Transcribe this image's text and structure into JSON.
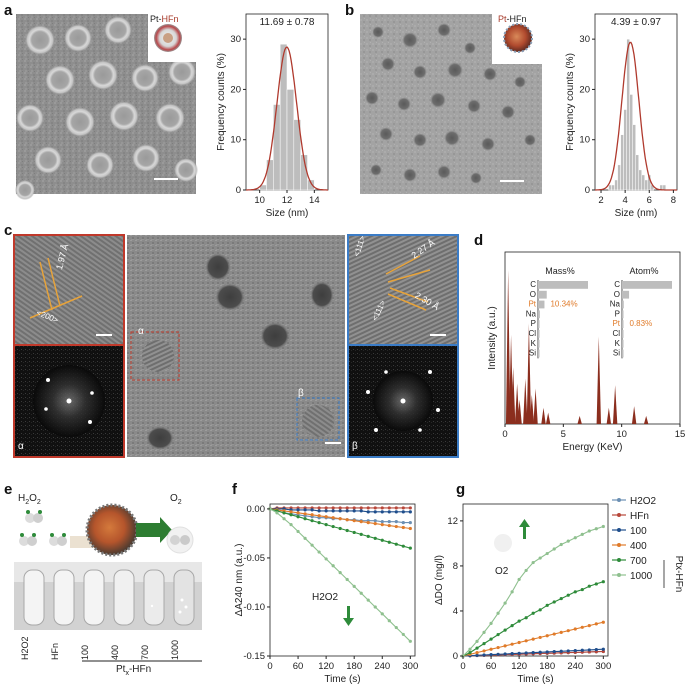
{
  "panels": {
    "a": {
      "letter": "a",
      "model_label_prefix": "Pt-",
      "model_label_suffix": "HFn",
      "stat": "11.69 ± 0.78",
      "xlabel": "Size (nm)",
      "ylabel": "Frequency counts (%)"
    },
    "b": {
      "letter": "b",
      "model_label_prefix": "Pt",
      "model_label_suffix": "-HFn",
      "stat": "4.39 ± 0.97",
      "xlabel": "Size (nm)",
      "ylabel": "Frequency counts (%)"
    },
    "c": {
      "letter": "c",
      "d1": "1.97 Å",
      "plane1": "<200>",
      "alpha": "α",
      "beta": "β",
      "d2": "2.27 Å",
      "d3": "2.30 Å",
      "plane2": "<111>",
      "plane3": "<111>"
    },
    "d": {
      "letter": "d",
      "xlabel": "Energy (KeV)",
      "ylabel": "Intensity (a.u.)",
      "mass_title": "Mass%",
      "atom_title": "Atom%",
      "pt_mass": "10.34%",
      "pt_atom": "0.83%"
    },
    "e": {
      "letter": "e",
      "h2o2": "H2O2",
      "o2": "O2",
      "tube_labels": [
        "H2O2",
        "HFn",
        "100",
        "400",
        "700",
        "1000"
      ],
      "group_label": "Ptx-HFn"
    },
    "f": {
      "letter": "f",
      "xlabel": "Time (s)",
      "ylabel": "ΔA240 nm (a.u.)",
      "annot": "H2O2"
    },
    "g": {
      "letter": "g",
      "xlabel": "Time (s)",
      "ylabel": "ΔDO (mg/l)",
      "annot": "O2",
      "legend_group": "Ptx-HFn"
    }
  },
  "colors": {
    "pt_orange": "#e07b2a",
    "hfn_red": "#a83a2a",
    "legend_h2o2": "#6b8fb3",
    "legend_hfn": "#b8473a",
    "legend_100": "#1f4e8c",
    "legend_400": "#e07b2a",
    "legend_700": "#2e8b3a",
    "legend_1000": "#8fc08f",
    "bar_gray": "#bdbdbd",
    "eds_red": "#8b2e1e"
  },
  "chart_data": [
    {
      "type": "bar",
      "id": "a-hist",
      "title": "",
      "xlabel": "Size (nm)",
      "ylabel": "Frequency counts (%)",
      "xlim": [
        9,
        15
      ],
      "ylim": [
        0,
        35
      ],
      "x": [
        10.25,
        10.75,
        11.25,
        11.75,
        12.25,
        12.75,
        13.25,
        13.75
      ],
      "values": [
        1,
        6,
        17,
        29,
        20,
        14,
        7,
        2
      ],
      "xticks": [
        10,
        12,
        14
      ],
      "yticks": [
        0,
        10,
        20,
        30
      ],
      "fit": "gaussian"
    },
    {
      "type": "bar",
      "id": "b-hist",
      "title": "",
      "xlabel": "Size (nm)",
      "ylabel": "Frequency counts (%)",
      "xlim": [
        1.5,
        8.3
      ],
      "ylim": [
        0,
        35
      ],
      "x": [
        2.75,
        3.0,
        3.25,
        3.5,
        3.75,
        4.0,
        4.25,
        4.5,
        4.75,
        5.0,
        5.25,
        5.5,
        5.75,
        6.0,
        6.25,
        6.5,
        6.75,
        7.0,
        7.25
      ],
      "values": [
        1,
        1,
        2,
        5,
        11,
        16,
        30,
        19,
        13,
        7,
        4,
        3,
        2,
        3,
        1,
        0,
        0,
        1,
        1
      ],
      "xticks": [
        2,
        4,
        6,
        8
      ],
      "yticks": [
        0,
        10,
        20,
        30
      ],
      "fit": "gaussian"
    },
    {
      "type": "bar",
      "id": "d-eds",
      "title": "",
      "xlabel": "Energy (KeV)",
      "ylabel": "Intensity (a.u.)",
      "xlim": [
        0,
        15
      ],
      "xticks": [
        0,
        5,
        10,
        15
      ],
      "inset_mass": {
        "categories": [
          "C",
          "O",
          "Pt",
          "Na",
          "P",
          "Cl",
          "K",
          "Si"
        ],
        "values": [
          80,
          14,
          10.34,
          3,
          2,
          1,
          0.5,
          0.3
        ]
      },
      "inset_atom": {
        "categories": [
          "C",
          "O",
          "Na",
          "P",
          "Pt",
          "Cl",
          "K",
          "Si"
        ],
        "values": [
          85,
          12,
          3,
          1.5,
          0.83,
          0.8,
          0.5,
          0.3
        ]
      }
    },
    {
      "type": "line",
      "id": "f-abs",
      "title": "",
      "xlabel": "Time (s)",
      "ylabel": "ΔA240 nm (a.u.)",
      "xlim": [
        0,
        310
      ],
      "ylim": [
        -0.15,
        0.005
      ],
      "xticks": [
        0,
        60,
        120,
        180,
        240,
        300
      ],
      "yticks": [
        0,
        -0.05,
        -0.1,
        -0.15
      ],
      "x": [
        0,
        15,
        30,
        45,
        60,
        75,
        90,
        105,
        120,
        135,
        150,
        165,
        180,
        195,
        210,
        225,
        240,
        255,
        270,
        285,
        300
      ],
      "series": [
        {
          "name": "H2O2",
          "values": [
            0,
            -0.002,
            -0.004,
            -0.005,
            -0.006,
            -0.007,
            -0.008,
            -0.009,
            -0.009,
            -0.01,
            -0.01,
            -0.011,
            -0.011,
            -0.012,
            -0.012,
            -0.012,
            -0.013,
            -0.013,
            -0.013,
            -0.014,
            -0.014
          ]
        },
        {
          "name": "HFn",
          "values": [
            0,
            0.001,
            0.001,
            0.001,
            0.001,
            0.001,
            0.001,
            0.001,
            0.001,
            0.001,
            0.001,
            0.001,
            0.001,
            0.001,
            0.001,
            0.001,
            0.001,
            0.001,
            0.001,
            0.001,
            0.001
          ]
        },
        {
          "name": "100",
          "values": [
            0,
            0,
            0,
            -0.001,
            -0.001,
            -0.001,
            -0.001,
            -0.002,
            -0.002,
            -0.002,
            -0.002,
            -0.002,
            -0.002,
            -0.002,
            -0.003,
            -0.003,
            -0.003,
            -0.003,
            -0.003,
            -0.003,
            -0.003
          ]
        },
        {
          "name": "400",
          "values": [
            0,
            -0.001,
            -0.002,
            -0.003,
            -0.004,
            -0.005,
            -0.006,
            -0.007,
            -0.008,
            -0.009,
            -0.01,
            -0.011,
            -0.012,
            -0.013,
            -0.014,
            -0.015,
            -0.016,
            -0.017,
            -0.018,
            -0.019,
            -0.02
          ]
        },
        {
          "name": "700",
          "values": [
            0,
            -0.002,
            -0.004,
            -0.006,
            -0.008,
            -0.01,
            -0.012,
            -0.014,
            -0.016,
            -0.018,
            -0.02,
            -0.022,
            -0.024,
            -0.026,
            -0.028,
            -0.03,
            -0.032,
            -0.034,
            -0.036,
            -0.038,
            -0.04
          ]
        },
        {
          "name": "1000",
          "values": [
            0,
            -0.004,
            -0.01,
            -0.016,
            -0.023,
            -0.03,
            -0.037,
            -0.044,
            -0.051,
            -0.058,
            -0.065,
            -0.072,
            -0.079,
            -0.086,
            -0.093,
            -0.1,
            -0.107,
            -0.114,
            -0.121,
            -0.128,
            -0.135
          ]
        }
      ]
    },
    {
      "type": "line",
      "id": "g-do",
      "title": "",
      "xlabel": "Time (s)",
      "ylabel": "ΔDO (mg/l)",
      "xlim": [
        0,
        310
      ],
      "ylim": [
        0,
        13.5
      ],
      "xticks": [
        0,
        60,
        120,
        180,
        240,
        300
      ],
      "yticks": [
        0,
        4,
        8,
        12
      ],
      "x": [
        0,
        15,
        30,
        45,
        60,
        75,
        90,
        105,
        120,
        135,
        150,
        165,
        180,
        195,
        210,
        225,
        240,
        255,
        270,
        285,
        300
      ],
      "series": [
        {
          "name": "H2O2",
          "values": [
            0,
            0.02,
            0.04,
            0.06,
            0.08,
            0.1,
            0.12,
            0.14,
            0.16,
            0.18,
            0.2,
            0.22,
            0.24,
            0.26,
            0.28,
            0.3,
            0.32,
            0.34,
            0.36,
            0.38,
            0.4
          ]
        },
        {
          "name": "HFn",
          "values": [
            0,
            0.02,
            0.04,
            0.06,
            0.08,
            0.1,
            0.12,
            0.14,
            0.16,
            0.18,
            0.2,
            0.22,
            0.24,
            0.26,
            0.28,
            0.3,
            0.32,
            0.34,
            0.36,
            0.38,
            0.4
          ]
        },
        {
          "name": "100",
          "values": [
            0,
            0.03,
            0.06,
            0.09,
            0.12,
            0.15,
            0.18,
            0.21,
            0.24,
            0.27,
            0.3,
            0.33,
            0.36,
            0.39,
            0.42,
            0.45,
            0.48,
            0.51,
            0.54,
            0.57,
            0.6
          ]
        },
        {
          "name": "400",
          "values": [
            0,
            0.15,
            0.3,
            0.45,
            0.6,
            0.75,
            0.9,
            1.05,
            1.2,
            1.35,
            1.5,
            1.65,
            1.8,
            1.95,
            2.1,
            2.25,
            2.4,
            2.55,
            2.7,
            2.85,
            3.0
          ]
        },
        {
          "name": "700",
          "values": [
            0,
            0.3,
            0.7,
            1.1,
            1.5,
            1.9,
            2.3,
            2.7,
            3.1,
            3.4,
            3.8,
            4.1,
            4.5,
            4.8,
            5.1,
            5.4,
            5.7,
            5.9,
            6.2,
            6.4,
            6.6
          ]
        },
        {
          "name": "1000",
          "values": [
            0,
            0.6,
            1.3,
            2.1,
            2.9,
            3.8,
            4.7,
            5.7,
            6.8,
            7.6,
            8.3,
            8.7,
            9.1,
            9.5,
            9.9,
            10.2,
            10.5,
            10.8,
            11.1,
            11.3,
            11.5
          ]
        }
      ]
    }
  ]
}
